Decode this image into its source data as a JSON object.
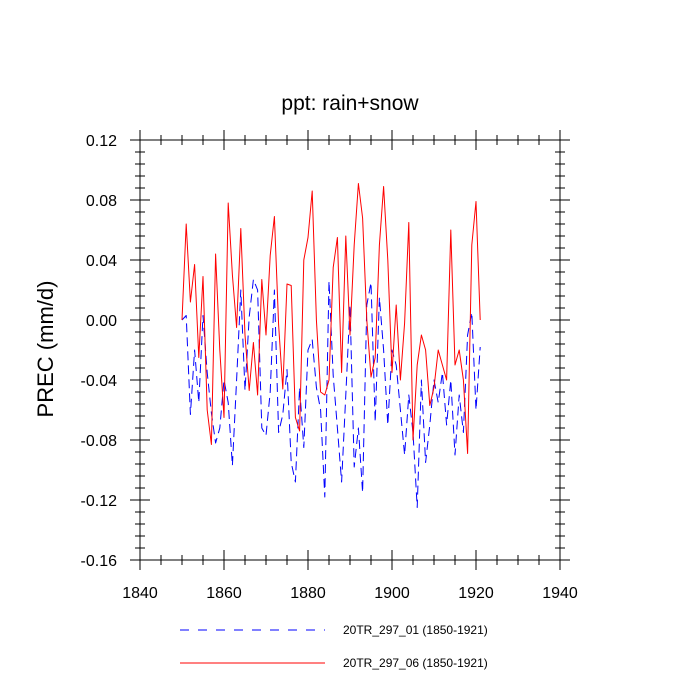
{
  "chart_data": {
    "type": "line",
    "title": "ppt: rain+snow",
    "xlabel": "",
    "ylabel": "PREC  (mm/d)",
    "xlim": [
      1840,
      1940
    ],
    "ylim": [
      -0.16,
      0.12
    ],
    "x_ticks": [
      1840,
      1860,
      1880,
      1900,
      1920,
      1940
    ],
    "x_tick_labels": [
      "1840",
      "1860",
      "1880",
      "1900",
      "1920",
      "1940"
    ],
    "y_ticks": [
      0.12,
      0.08,
      0.04,
      0.0,
      -0.04,
      -0.08,
      -0.12,
      -0.16
    ],
    "y_tick_labels": [
      "0.12",
      "0.08",
      "0.04",
      "0.00",
      "-0.04",
      "-0.08",
      "-0.12",
      "-0.16"
    ],
    "x_start": 1850,
    "legend_position": "bottom",
    "series": [
      {
        "name": "20TR_297_01 (1850-1921)",
        "color": "#0000ff",
        "style": "dashed",
        "values": [
          0.0,
          0.003,
          -0.063,
          -0.02,
          -0.055,
          0.003,
          -0.035,
          -0.062,
          -0.082,
          -0.072,
          -0.04,
          -0.055,
          -0.097,
          -0.04,
          0.02,
          -0.047,
          0.002,
          0.027,
          0.02,
          -0.072,
          -0.077,
          -0.048,
          0.02,
          -0.075,
          -0.063,
          -0.033,
          -0.095,
          -0.108,
          -0.045,
          -0.085,
          -0.02,
          -0.013,
          -0.045,
          -0.06,
          -0.118,
          0.026,
          -0.037,
          -0.072,
          -0.108,
          -0.05,
          0.01,
          -0.098,
          -0.072,
          -0.115,
          0.01,
          0.025,
          -0.068,
          0.015,
          -0.02,
          -0.07,
          -0.02,
          -0.03,
          -0.06,
          -0.09,
          -0.05,
          -0.075,
          -0.125,
          -0.04,
          -0.095,
          -0.07,
          -0.04,
          -0.055,
          -0.035,
          -0.07,
          -0.04,
          -0.09,
          -0.05,
          -0.075,
          -0.01,
          0.005,
          -0.06,
          -0.018
        ]
      },
      {
        "name": "20TR_297_06 (1850-1921)",
        "color": "#ff0000",
        "style": "solid",
        "values": [
          0.0,
          0.064,
          0.012,
          0.037,
          -0.025,
          0.029,
          -0.06,
          -0.083,
          0.044,
          -0.02,
          -0.065,
          0.078,
          0.03,
          -0.005,
          0.061,
          -0.01,
          -0.047,
          -0.015,
          -0.05,
          0.027,
          -0.01,
          0.043,
          0.069,
          -0.003,
          -0.046,
          0.024,
          0.023,
          -0.065,
          -0.074,
          0.04,
          0.055,
          0.086,
          0.0,
          -0.048,
          -0.05,
          -0.04,
          0.035,
          0.055,
          -0.035,
          0.056,
          -0.01,
          0.05,
          0.091,
          0.068,
          0.0,
          -0.038,
          -0.025,
          0.05,
          0.089,
          0.04,
          -0.035,
          0.01,
          -0.04,
          -0.002,
          0.065,
          -0.08,
          -0.03,
          -0.01,
          -0.02,
          -0.057,
          -0.045,
          -0.02,
          -0.03,
          -0.04,
          0.06,
          -0.03,
          -0.02,
          -0.04,
          -0.089,
          0.05,
          0.079,
          0.0
        ]
      }
    ]
  }
}
